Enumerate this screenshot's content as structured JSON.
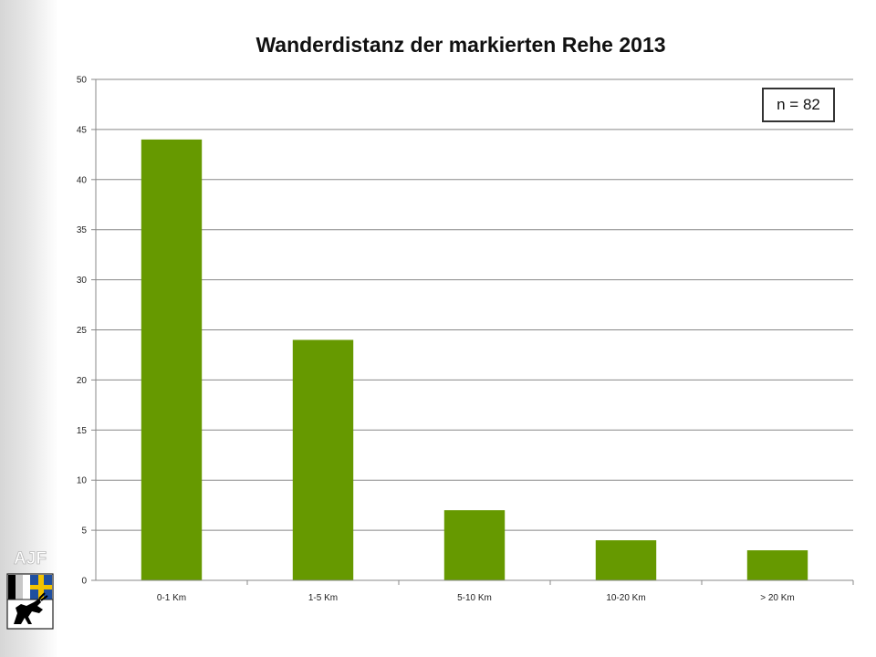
{
  "chart_data": {
    "type": "bar",
    "title": "Wanderdistanz der markierten Rehe 2013",
    "categories": [
      "0-1 Km",
      "1-5 Km",
      "5-10 Km",
      "10-20 Km",
      "> 20 Km"
    ],
    "values": [
      44,
      24,
      7,
      4,
      3
    ],
    "ylim": [
      0,
      50
    ],
    "yticks": [
      0,
      5,
      10,
      15,
      20,
      25,
      30,
      35,
      40,
      45,
      50
    ],
    "xlabel": "",
    "ylabel": "",
    "grid": true,
    "bar_color": "#669900",
    "annotation": "n = 82"
  },
  "logo": {
    "text": "AJF",
    "colors": {
      "flag_blue": "#1f4fa0",
      "flag_yellow": "#f2c300",
      "black": "#000000"
    }
  }
}
